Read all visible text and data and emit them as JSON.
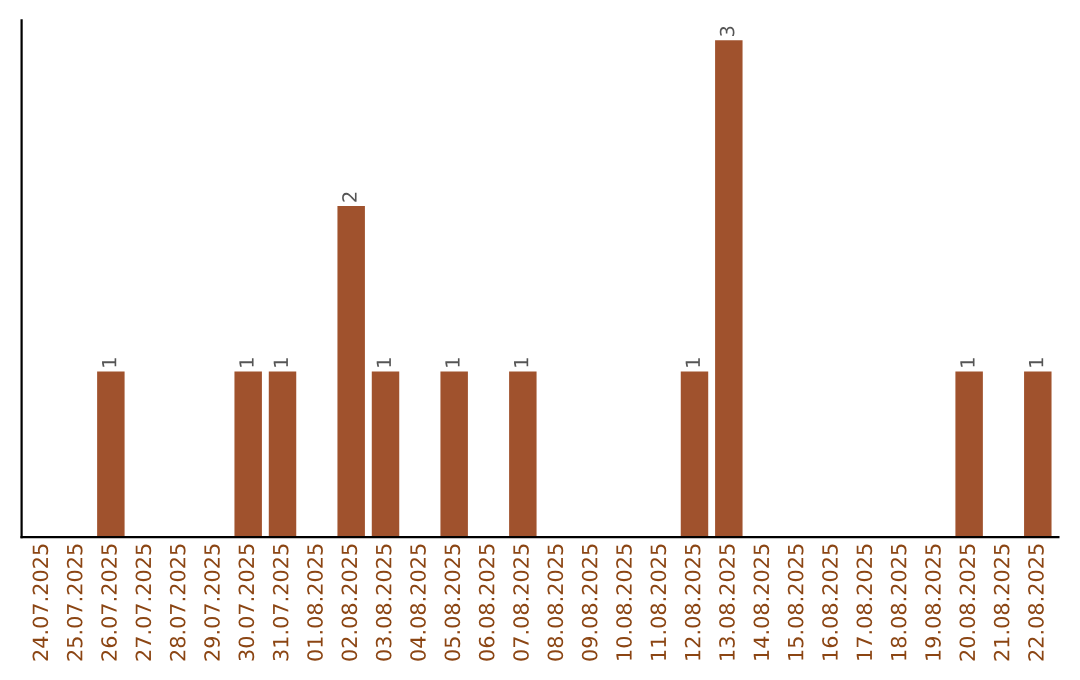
{
  "chart_data": {
    "type": "bar",
    "categories": [
      "24.07.2025",
      "25.07.2025",
      "26.07.2025",
      "27.07.2025",
      "28.07.2025",
      "29.07.2025",
      "30.07.2025",
      "31.07.2025",
      "01.08.2025",
      "02.08.2025",
      "03.08.2025",
      "04.08.2025",
      "05.08.2025",
      "06.08.2025",
      "07.08.2025",
      "08.08.2025",
      "09.08.2025",
      "10.08.2025",
      "11.08.2025",
      "12.08.2025",
      "13.08.2025",
      "14.08.2025",
      "15.08.2025",
      "16.08.2025",
      "17.08.2025",
      "18.08.2025",
      "19.08.2025",
      "20.08.2025",
      "21.08.2025",
      "22.08.2025"
    ],
    "values": [
      0,
      0,
      1,
      0,
      0,
      0,
      1,
      1,
      0,
      2,
      1,
      0,
      1,
      0,
      1,
      0,
      0,
      0,
      0,
      1,
      3,
      0,
      0,
      0,
      0,
      0,
      0,
      1,
      0,
      1
    ],
    "value_labels": [
      null,
      null,
      "1",
      null,
      null,
      null,
      "1",
      "1",
      null,
      "2",
      "1",
      null,
      "1",
      null,
      "1",
      null,
      null,
      null,
      null,
      "1",
      "3",
      null,
      null,
      null,
      null,
      null,
      null,
      "1",
      null,
      "1"
    ],
    "color": "#a0522d",
    "ylim": [
      0,
      3.12
    ],
    "tick_labels": "x",
    "grid": false,
    "legend": false
  }
}
